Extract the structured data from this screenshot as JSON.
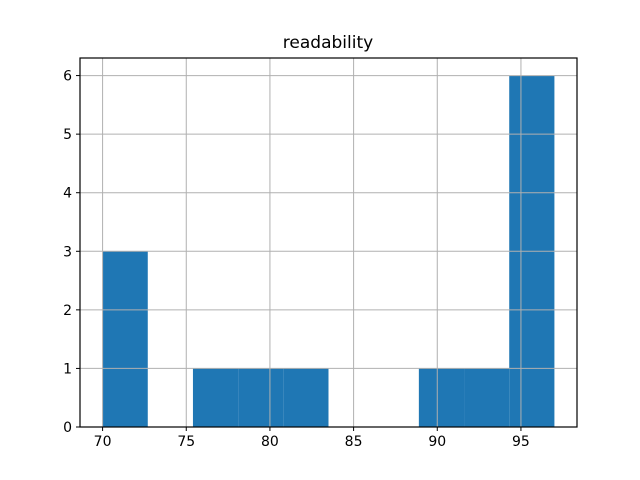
{
  "figure": {
    "title": "readability",
    "background": "#ffffff"
  },
  "colors": {
    "bar": "#1f77b4",
    "grid": "#b0b0b0",
    "axis": "#000000",
    "tick_label": "#000000",
    "background": "#ffffff"
  },
  "chart_data": {
    "type": "bar",
    "subtype": "histogram",
    "title": "readability",
    "xlabel": "",
    "ylabel": "",
    "bin_edges": [
      70.0,
      72.7,
      75.4,
      78.1,
      80.8,
      83.5,
      86.2,
      88.9,
      91.6,
      94.3,
      97.0
    ],
    "counts": [
      3,
      0,
      1,
      1,
      1,
      0,
      0,
      1,
      1,
      6
    ],
    "xticks": [
      70,
      75,
      80,
      85,
      90,
      95
    ],
    "yticks": [
      0,
      1,
      2,
      3,
      4,
      5,
      6
    ],
    "xlim": [
      68.65,
      98.35
    ],
    "ylim": [
      0,
      6.3
    ],
    "grid": true,
    "legend_position": "none"
  }
}
